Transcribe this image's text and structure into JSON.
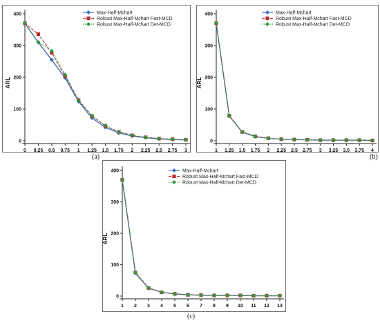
{
  "colors": {
    "series1": "#3a6fc4",
    "series2": "#c0272d",
    "series3": "#2f9a3c",
    "frame": "#6f6f6f"
  },
  "chart_data": [
    {
      "type": "line",
      "caption": "(a)",
      "ylabel": "ARL",
      "xlabel": "",
      "title": "",
      "xlim": [
        0,
        3
      ],
      "ylim": [
        0,
        400
      ],
      "xticks": [
        "0",
        "0.25",
        "0.5",
        "0.75",
        "1",
        "1.25",
        "1.5",
        "1.75",
        "2",
        "2.25",
        "2.5",
        "2.75",
        "3"
      ],
      "yticks": [
        "0",
        "100",
        "200",
        "300",
        "400"
      ],
      "x": [
        0,
        0.25,
        0.5,
        0.75,
        1,
        1.25,
        1.5,
        1.75,
        2,
        2.25,
        2.5,
        2.75,
        3
      ],
      "series": [
        {
          "name": "Max-Half-Mchart",
          "marker": "diamond",
          "dash": "solid",
          "values": [
            370,
            310,
            255,
            198,
            124,
            72,
            42,
            25,
            15,
            10,
            6,
            4,
            3
          ]
        },
        {
          "name": "Robust Max-Half-Mchart Fast-MCD",
          "marker": "square",
          "dash": "dashed",
          "values": [
            370,
            336,
            277,
            204,
            128,
            78,
            47,
            28,
            17,
            11,
            7,
            5,
            3
          ]
        },
        {
          "name": "Robust Max-Half-Mchart Det-MCD",
          "marker": "diamond",
          "dash": "dotted",
          "values": [
            370,
            311,
            283,
            208,
            127,
            79,
            48,
            28,
            17,
            11,
            7,
            5,
            3
          ]
        }
      ],
      "legend": "top-right",
      "grid": false
    },
    {
      "type": "line",
      "caption": "(b)",
      "ylabel": "ARL",
      "xlabel": "",
      "title": "",
      "xlim": [
        1,
        4
      ],
      "ylim": [
        0,
        400
      ],
      "xticks": [
        "1",
        "1.25",
        "1.5",
        "1.75",
        "2",
        "2.25",
        "2.5",
        "2.75",
        "3",
        "3.25",
        "3.5",
        "3.75",
        "4"
      ],
      "yticks": [
        "0",
        "100",
        "200",
        "300",
        "400"
      ],
      "x": [
        1,
        1.25,
        1.5,
        1.75,
        2,
        2.25,
        2.5,
        2.75,
        3,
        3.25,
        3.5,
        3.75,
        4
      ],
      "series": [
        {
          "name": "Max-Half-Mchart",
          "marker": "diamond",
          "dash": "solid",
          "values": [
            370,
            78,
            27,
            13,
            8,
            5,
            4,
            3,
            2,
            2,
            2,
            2,
            1
          ]
        },
        {
          "name": "Robust Max-Half-Mchart Fast-MCD",
          "marker": "square",
          "dash": "dashed",
          "values": [
            370,
            79,
            28,
            14,
            8,
            5,
            4,
            3,
            2,
            2,
            2,
            2,
            1
          ]
        },
        {
          "name": "Robust Max-Half-Mchart Det-MCD",
          "marker": "diamond",
          "dash": "dotted",
          "values": [
            370,
            79,
            28,
            14,
            8,
            5,
            4,
            3,
            2,
            2,
            2,
            2,
            1
          ]
        }
      ],
      "legend": "top-right",
      "grid": false
    },
    {
      "type": "line",
      "caption": "(c)",
      "ylabel": "ARL",
      "xlabel": "",
      "title": "",
      "xlim": [
        1,
        13
      ],
      "ylim": [
        0,
        400
      ],
      "xticks": [
        "1",
        "2",
        "3",
        "4",
        "5",
        "6",
        "7",
        "8",
        "9",
        "10",
        "11",
        "12",
        "13"
      ],
      "yticks": [
        "0",
        "100",
        "200",
        "300",
        "400"
      ],
      "x": [
        1,
        2,
        3,
        4,
        5,
        6,
        7,
        8,
        9,
        10,
        11,
        12,
        13
      ],
      "series": [
        {
          "name": "Max-Half-Mchart",
          "marker": "diamond",
          "dash": "solid",
          "values": [
            370,
            73,
            25,
            12,
            7,
            4,
            3,
            2,
            2,
            2,
            1,
            1,
            1
          ]
        },
        {
          "name": "Robust Max-Half-Mchart  Fast-MCD",
          "marker": "square",
          "dash": "dashed",
          "values": [
            370,
            75,
            26,
            12,
            7,
            4,
            3,
            2,
            2,
            2,
            1,
            1,
            1
          ]
        },
        {
          "name": "Robust Max-Half-Mchart  Det-MCD",
          "marker": "diamond",
          "dash": "dotted",
          "values": [
            370,
            75,
            26,
            12,
            7,
            4,
            3,
            2,
            2,
            2,
            1,
            1,
            1
          ]
        }
      ],
      "legend": "top-center",
      "grid": false
    }
  ]
}
